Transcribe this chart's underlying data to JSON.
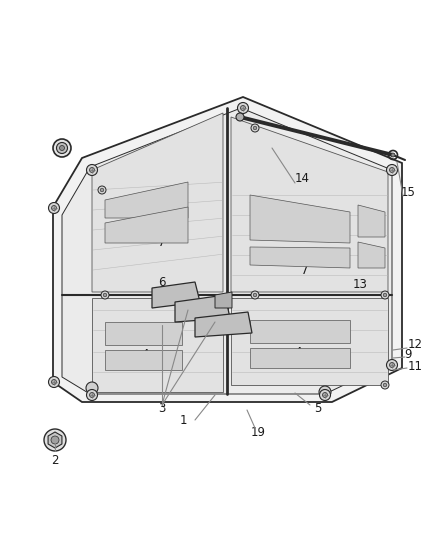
{
  "bg_color": "#ffffff",
  "line_color": "#2a2a2a",
  "label_color": "#1a1a1a",
  "label_fontsize": 8.5,
  "thin_color": "#555555",
  "fill_main": "#f2f2f2",
  "fill_panel": "#e8e8e8",
  "fill_slot": "#d0d0d0",
  "fill_hinge": "#c0c0c0",
  "fill_screw": "#d8d8d8",
  "fill_cap": "#e0e0e0"
}
